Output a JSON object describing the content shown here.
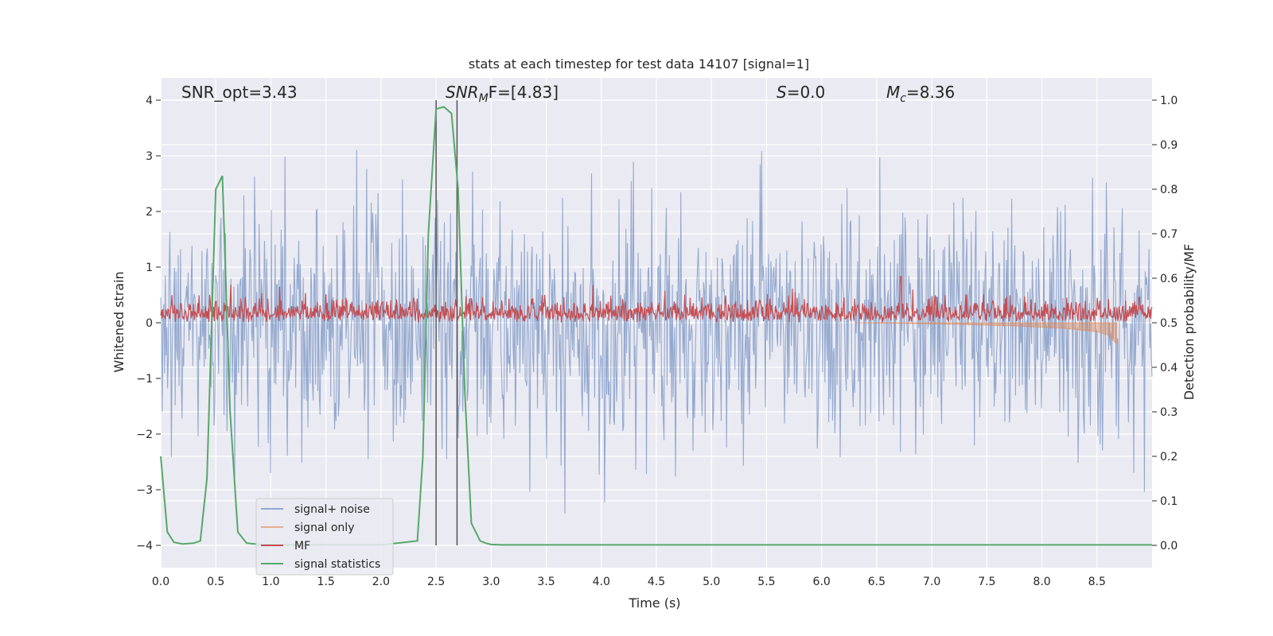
{
  "chart_data": {
    "type": "line",
    "title": "stats at each timestep for test data 14107 [signal=1]",
    "xlabel": "Time (s)",
    "ylabel": "Whitened strain",
    "y2label": "Detection probability/MF",
    "xlim": [
      0,
      9.0
    ],
    "ylim": [
      -4.4,
      4.4
    ],
    "y2lim": [
      -0.05,
      1.05
    ],
    "xticks": [
      "0.0",
      "0.5",
      "1.0",
      "1.5",
      "2.0",
      "2.5",
      "3.0",
      "3.5",
      "4.0",
      "4.5",
      "5.0",
      "5.5",
      "6.0",
      "6.5",
      "7.0",
      "7.5",
      "8.0",
      "8.5"
    ],
    "yticks": [
      "−4",
      "−3",
      "−2",
      "−1",
      "0",
      "1",
      "2",
      "3",
      "4"
    ],
    "y2ticks": [
      "0.0",
      "0.1",
      "0.2",
      "0.3",
      "0.4",
      "0.5",
      "0.6",
      "0.7",
      "0.8",
      "0.9",
      "1.0"
    ],
    "grid": true,
    "legend_position": "lower-left",
    "annotations": {
      "snr_opt": "SNR_opt=3.43",
      "snr_mf_base": "SNR",
      "snr_mf_sub": "M",
      "snr_mf_rest": "F=[4.83]",
      "s_var": "S",
      "s_rest": "=0.0",
      "mc_base": "M",
      "mc_sub": "c",
      "mc_rest": "=8.36"
    },
    "vertical_lines": [
      2.5,
      2.69
    ],
    "series": [
      {
        "name": "signal+ noise",
        "color": "#4c72b0",
        "description_level": "noise band approx ±2.3 with peaks to ±4",
        "amplitude": 1.0
      },
      {
        "name": "signal only",
        "color": "#dd8452",
        "x": [
          6.3,
          6.8,
          7.3,
          7.8,
          8.2,
          8.5,
          8.6,
          8.68
        ],
        "y": [
          0.0,
          -0.01,
          -0.03,
          -0.06,
          -0.1,
          -0.16,
          -0.22,
          -0.38
        ]
      },
      {
        "name": "MF",
        "color": "#c44e52",
        "baseline": 0.5,
        "range": [
          0.5,
          0.6
        ],
        "peak": {
          "x": 6.72,
          "y": 0.62
        }
      },
      {
        "name": "signal statistics",
        "color": "#55a868",
        "x": [
          0.0,
          0.06,
          0.12,
          0.2,
          0.3,
          0.36,
          0.42,
          0.5,
          0.56,
          0.63,
          0.7,
          0.78,
          0.9,
          1.2,
          2.0,
          2.33,
          2.38,
          2.43,
          2.5,
          2.57,
          2.64,
          2.7,
          2.76,
          2.82,
          2.9,
          2.95,
          3.0,
          3.1,
          3.3,
          5.0,
          7.0,
          9.0
        ],
        "y": [
          0.2,
          0.03,
          0.007,
          0.003,
          0.005,
          0.01,
          0.15,
          0.8,
          0.83,
          0.3,
          0.03,
          0.005,
          0.002,
          0.001,
          0.001,
          0.01,
          0.2,
          0.7,
          0.98,
          0.985,
          0.97,
          0.8,
          0.35,
          0.05,
          0.01,
          0.005,
          0.002,
          0.001,
          0.001,
          0.001,
          0.001,
          0.001
        ]
      }
    ]
  }
}
